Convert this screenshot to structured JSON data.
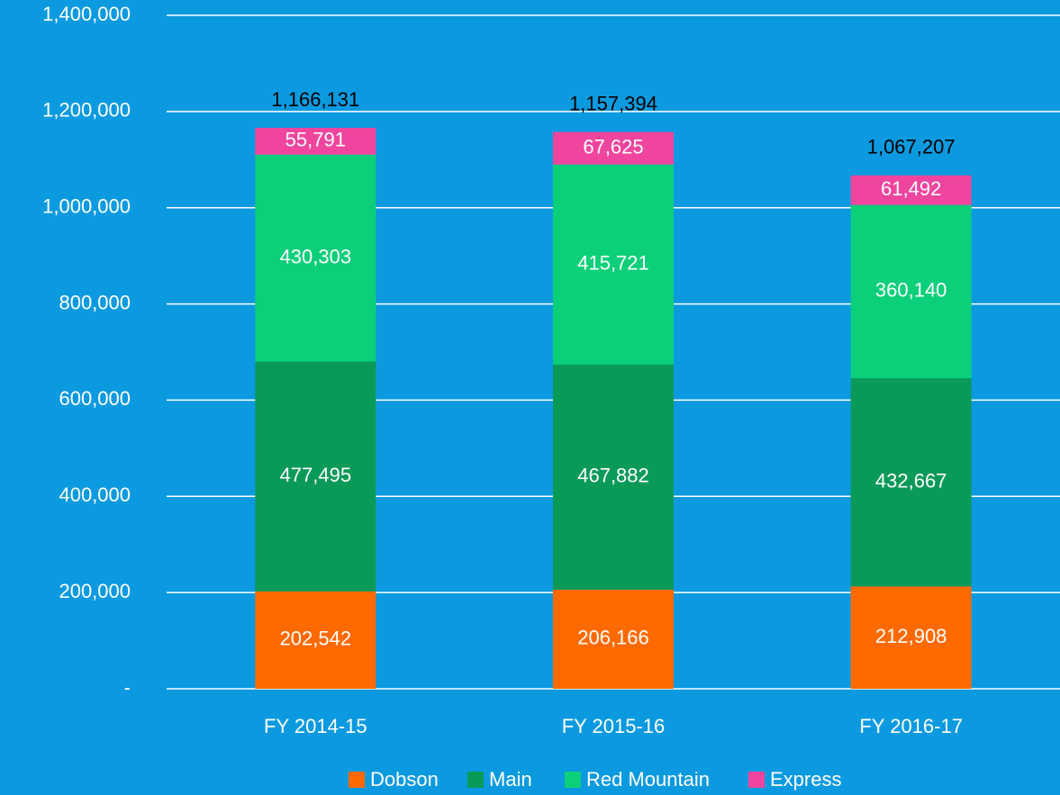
{
  "chart_data": {
    "type": "stacked_bar",
    "categories": [
      "FY 2014-15",
      "FY 2015-16",
      "FY 2016-17"
    ],
    "series": [
      {
        "name": "Dobson",
        "color": "#ff6a00",
        "values": [
          202542,
          206166,
          212908
        ],
        "value_labels": [
          "202,542",
          "206,166",
          "212,908"
        ]
      },
      {
        "name": "Main",
        "color": "#0a9a58",
        "values": [
          477495,
          467882,
          432667
        ],
        "value_labels": [
          "477,495",
          "467,882",
          "432,667"
        ]
      },
      {
        "name": "Red Mountain",
        "color": "#0ccf7a",
        "values": [
          430303,
          415721,
          360140
        ],
        "value_labels": [
          "430,303",
          "415,721",
          "360,140"
        ]
      },
      {
        "name": "Express",
        "color": "#f0459e",
        "values": [
          55791,
          67625,
          61492
        ],
        "value_labels": [
          "55,791",
          "67,625",
          "61,492"
        ]
      }
    ],
    "totals": {
      "values": [
        1166131,
        1157394,
        1067207
      ],
      "value_labels": [
        "1,166,131",
        "1,157,394",
        "1,067,207"
      ]
    },
    "ylim": [
      0,
      1400000
    ],
    "yticks": [
      {
        "value": 0,
        "label": "-"
      },
      {
        "value": 200000,
        "label": "200,000"
      },
      {
        "value": 400000,
        "label": "400,000"
      },
      {
        "value": 600000,
        "label": "600,000"
      },
      {
        "value": 800000,
        "label": "800,000"
      },
      {
        "value": 1000000,
        "label": "1,000,000"
      },
      {
        "value": 1200000,
        "label": "1,200,000"
      },
      {
        "value": 1400000,
        "label": "1,400,000"
      }
    ],
    "grid": true,
    "legend": "bottom"
  }
}
